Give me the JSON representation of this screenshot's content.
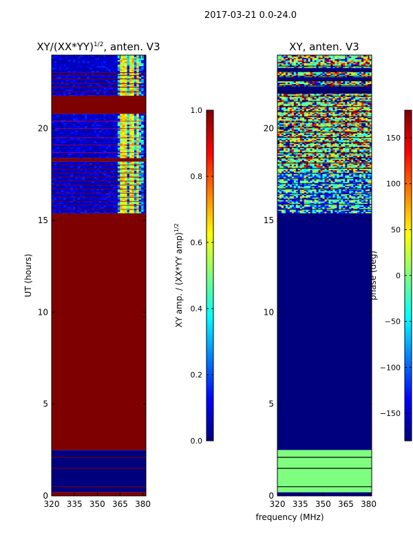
{
  "figure": {
    "title": "2017-03-21 0.0-24.0",
    "xlabel": "frequency (MHz)"
  },
  "colors": {
    "jet": [
      "#00007f",
      "#0000ff",
      "#007fff",
      "#00ffff",
      "#7fff7f",
      "#ffff00",
      "#ff7f00",
      "#ff0000",
      "#7f0000"
    ]
  },
  "chart_data": [
    {
      "type": "heatmap",
      "title": "XY/(XX*YY)",
      "title_exponent": "1/2",
      "title_suffix": ", anten. V3",
      "xlabel": "",
      "ylabel": "UT (hours)",
      "x_range": [
        320,
        382
      ],
      "y_range": [
        0,
        24
      ],
      "x_ticks": [
        320,
        335,
        350,
        365,
        380
      ],
      "y_ticks": [
        0,
        5,
        10,
        15,
        20
      ],
      "colorbar": {
        "label": "XY amp. / (XX*YY amp)",
        "label_exponent": "1/2",
        "range": [
          0,
          1
        ],
        "ticks": [
          "0.0",
          "0.2",
          "0.4",
          "0.6",
          "0.8",
          "1.0"
        ]
      },
      "regions": [
        {
          "y": [
            0,
            0.2
          ],
          "value": 1.0
        },
        {
          "y": [
            0.2,
            2.5
          ],
          "value": 0.0,
          "note": "thin value-1.0 lines near 0.5, 1.5, 2.1 h"
        },
        {
          "y": [
            2.5,
            15.4
          ],
          "value": 1.0
        },
        {
          "y": [
            15.4,
            18.2
          ],
          "value": 0.05,
          "note": "mostly low; mixed 0.1-0.7 in 363-379 MHz; many value-1.0 lines"
        },
        {
          "y": [
            18.2,
            18.4
          ],
          "value": 1.0
        },
        {
          "y": [
            18.4,
            20.8
          ],
          "value": 0.05,
          "note": "mostly low; mixed 0.1-0.7 in 363-379 MHz"
        },
        {
          "y": [
            20.8,
            21.8
          ],
          "value": 1.0
        },
        {
          "y": [
            21.8,
            24
          ],
          "value": 0.05,
          "note": "many value-1.0 lines; vertical 0.5-0.7 stripes near 365-376 MHz"
        }
      ]
    },
    {
      "type": "heatmap",
      "title": "XY, anten. V3",
      "xlabel": "",
      "ylabel": "",
      "x_range": [
        320,
        382
      ],
      "y_range": [
        0,
        24
      ],
      "x_ticks": [
        320,
        335,
        350,
        365,
        380
      ],
      "y_ticks": [
        0,
        5,
        10,
        15,
        20
      ],
      "colorbar": {
        "label": "phase (deg)",
        "range": [
          -180,
          180
        ],
        "ticks": [
          "150",
          "100",
          "50",
          "0",
          "−50",
          "−100",
          "−150"
        ]
      },
      "regions": [
        {
          "y": [
            0,
            0.2
          ],
          "value": -180
        },
        {
          "y": [
            0.2,
            2.5
          ],
          "value": 0,
          "note": "black lines near 0.5, 1.5, 2.1 h"
        },
        {
          "y": [
            2.5,
            15.4
          ],
          "value": -180
        },
        {
          "y": [
            15.4,
            21.8
          ],
          "value": "mixed",
          "note": "noisy phases spanning -180..180 with many black lines"
        },
        {
          "y": [
            21.8,
            24
          ],
          "value": "mixed",
          "note": "noisy phases with bands of dark blue"
        }
      ]
    }
  ]
}
